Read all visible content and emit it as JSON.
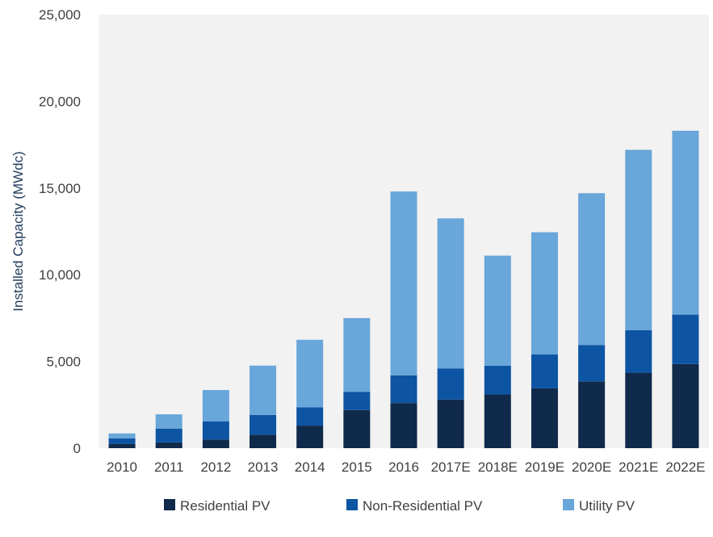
{
  "chart_data": {
    "type": "bar",
    "stacked": true,
    "title": "",
    "xlabel": "",
    "ylabel": "Installed Capacity (MWdc)",
    "ylim": [
      0,
      25000
    ],
    "yticks": [
      0,
      5000,
      10000,
      15000,
      20000,
      25000
    ],
    "ytick_labels": [
      "0",
      "5,000",
      "10,000",
      "15,000",
      "20,000",
      "25,000"
    ],
    "categories": [
      "2010",
      "2011",
      "2012",
      "2013",
      "2014",
      "2015",
      "2016",
      "2017E",
      "2018E",
      "2019E",
      "2020E",
      "2021E",
      "2022E"
    ],
    "series": [
      {
        "name": "Residential PV",
        "color": "#0f2a4a",
        "values": [
          250,
          330,
          500,
          780,
          1300,
          2200,
          2600,
          2800,
          3100,
          3450,
          3850,
          4350,
          4850
        ]
      },
      {
        "name": "Non-Residential PV",
        "color": "#0d54a3",
        "values": [
          320,
          800,
          1050,
          1130,
          1050,
          1050,
          1600,
          1800,
          1650,
          1950,
          2100,
          2450,
          2850
        ]
      },
      {
        "name": "Utility PV",
        "color": "#69a6d9",
        "values": [
          280,
          820,
          1800,
          2850,
          3900,
          4250,
          10600,
          8650,
          6350,
          7050,
          8750,
          10400,
          10600
        ]
      }
    ],
    "legend": "bottom",
    "grid": false,
    "plot_background": "#f2f2f2"
  }
}
